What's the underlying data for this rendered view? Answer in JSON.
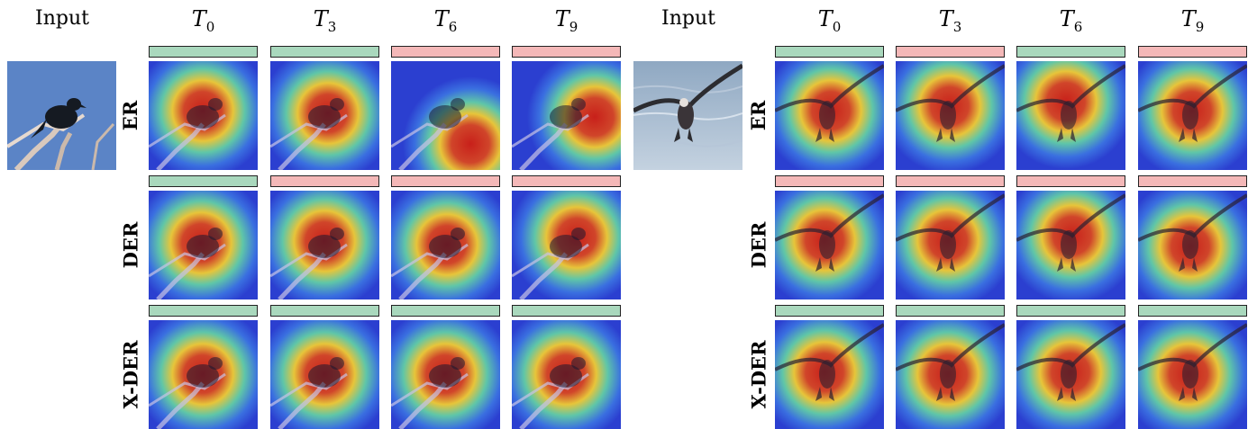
{
  "headers": {
    "input": "Input",
    "tasks": [
      {
        "main": "T",
        "sub": "0"
      },
      {
        "main": "T",
        "sub": "3"
      },
      {
        "main": "T",
        "sub": "6"
      },
      {
        "main": "T",
        "sub": "9"
      }
    ]
  },
  "rows": [
    "ER",
    "DER",
    "X-DER"
  ],
  "panels": [
    {
      "input_subject": "bird-on-branch-photo",
      "correctness": [
        [
          "correct",
          "correct",
          "wrong",
          "wrong"
        ],
        [
          "correct",
          "wrong",
          "wrong",
          "wrong"
        ],
        [
          "correct",
          "correct",
          "correct",
          "correct"
        ]
      ]
    },
    {
      "input_subject": "flying-bird-photo",
      "correctness": [
        [
          "correct",
          "wrong",
          "correct",
          "wrong"
        ],
        [
          "wrong",
          "wrong",
          "wrong",
          "wrong"
        ],
        [
          "correct",
          "correct",
          "correct",
          "correct"
        ]
      ]
    }
  ],
  "colors": {
    "correct_bar": "#a9d8bd",
    "wrong_bar": "#f4b8b8",
    "heat_low": "#2b3fd0",
    "heat_high": "#c8201a"
  }
}
